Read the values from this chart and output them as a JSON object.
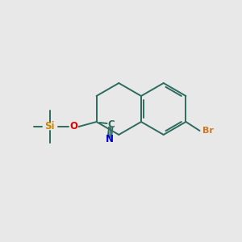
{
  "background_color": "#e8e8e8",
  "bond_color": "#2d6b5e",
  "br_color": "#cc7722",
  "si_color": "#cc8800",
  "o_color": "#dd0000",
  "c_color": "#2d6b5e",
  "n_color": "#0000cc",
  "br_label": "Br",
  "si_label": "Si",
  "o_label": "O",
  "c_label": "C",
  "n_label": "N",
  "figsize": [
    3.0,
    3.0
  ],
  "dpi": 100
}
